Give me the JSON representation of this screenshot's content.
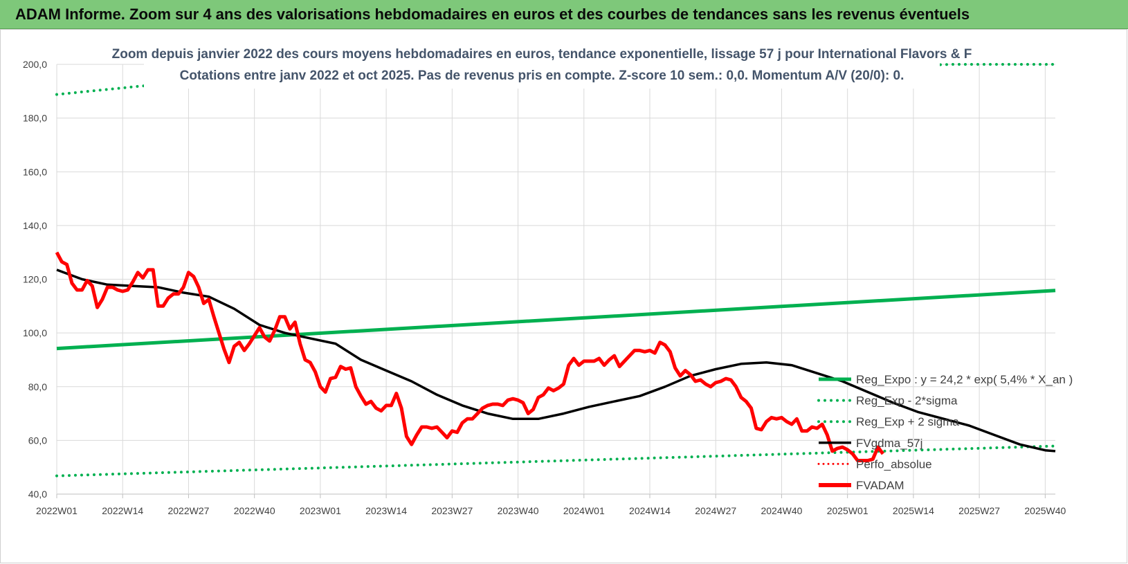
{
  "header": {
    "title": "ADAM Informe. Zoom sur 4 ans des valorisations hebdomadaires en euros et des courbes de tendances sans les revenus éventuels"
  },
  "colors": {
    "header_bg": "#7ec87a",
    "green": "#00b050",
    "red": "#ff0000",
    "black": "#000000",
    "title_text": "#44546a"
  },
  "chart_data": {
    "type": "line",
    "title": "Zoom depuis janvier 2022 des cours moyens hebdomadaires en euros, tendance exponentielle, lissage 57 j pour International Flavors & F",
    "subtitle": "Cotations entre janv 2022 et oct 2025. Pas de revenus pris en compte. Z-score 10 sem.: 0,0. Momentum A/V (20/0): 0.",
    "xlabel": "",
    "ylabel": "",
    "ylim": [
      40,
      200
    ],
    "yticks": [
      "40,0",
      "60,0",
      "80,0",
      "100,0",
      "120,0",
      "140,0",
      "160,0",
      "180,0",
      "200,0"
    ],
    "xlim": [
      0,
      197
    ],
    "x_tick_labels": [
      "2022W01",
      "2022W14",
      "2022W27",
      "2022W40",
      "2023W01",
      "2023W14",
      "2023W27",
      "2023W40",
      "2024W01",
      "2024W14",
      "2024W27",
      "2024W40",
      "2025W01",
      "2025W14",
      "2025W27",
      "2025W40"
    ],
    "x_tick_positions": [
      0,
      13,
      26,
      39,
      52,
      65,
      78,
      91,
      104,
      117,
      130,
      143,
      156,
      169,
      182,
      195
    ],
    "grid": "horizontal and vertical",
    "legend_position": "right",
    "legend": [
      {
        "label": "Reg_Expo : y = 24,2 * exp( 5,4% * X_an )",
        "style": "green-solid"
      },
      {
        "label": "Reg_Exp - 2*sigma",
        "style": "green-dotted"
      },
      {
        "label": "Reg_Exp + 2 sigma",
        "style": "green-dotted"
      },
      {
        "label": "FVgdma_57j",
        "style": "black-solid"
      },
      {
        "label": "Perfo_absolue",
        "style": "red-dotted"
      },
      {
        "label": "FVADAM",
        "style": "red-thick"
      }
    ],
    "series": [
      {
        "name": "Reg_Expo : y = 24,2 * exp( 5,4% * X_an )",
        "points": [
          [
            0,
            94.2
          ],
          [
            197,
            115.8
          ]
        ]
      },
      {
        "name": "Reg_Exp - 2*sigma",
        "points": [
          [
            0,
            46.8
          ],
          [
            197,
            57.9
          ]
        ]
      },
      {
        "name": "Reg_Exp + 2 sigma",
        "points": [
          [
            0,
            188.8
          ],
          [
            17,
            192.0
          ],
          [
            177,
            200.0
          ],
          [
            197,
            200.0
          ]
        ]
      },
      {
        "name": "FVgdma_57j",
        "points": [
          [
            0,
            123.5
          ],
          [
            5,
            120
          ],
          [
            10,
            118
          ],
          [
            15,
            117.5
          ],
          [
            20,
            117
          ],
          [
            25,
            115
          ],
          [
            30,
            113.5
          ],
          [
            35,
            109
          ],
          [
            40,
            103
          ],
          [
            45,
            100
          ],
          [
            50,
            98
          ],
          [
            55,
            96
          ],
          [
            60,
            90
          ],
          [
            65,
            86
          ],
          [
            70,
            82
          ],
          [
            75,
            77
          ],
          [
            80,
            73
          ],
          [
            85,
            70
          ],
          [
            90,
            68
          ],
          [
            95,
            68
          ],
          [
            100,
            70
          ],
          [
            105,
            72.5
          ],
          [
            110,
            74.5
          ],
          [
            115,
            76.5
          ],
          [
            120,
            80
          ],
          [
            125,
            84
          ],
          [
            130,
            86.5
          ],
          [
            135,
            88.5
          ],
          [
            140,
            89
          ],
          [
            145,
            88
          ],
          [
            150,
            85
          ],
          [
            155,
            82
          ],
          [
            160,
            78
          ],
          [
            165,
            74
          ],
          [
            170,
            70.5
          ],
          [
            175,
            68
          ],
          [
            180,
            65.5
          ],
          [
            185,
            62
          ],
          [
            190,
            58.5
          ],
          [
            195,
            56.3
          ],
          [
            197,
            56
          ]
        ]
      },
      {
        "name": "FVADAM",
        "points": [
          [
            0,
            130
          ],
          [
            1,
            126.5
          ],
          [
            2,
            125.5
          ],
          [
            3,
            118.5
          ],
          [
            4,
            116
          ],
          [
            5,
            116
          ],
          [
            6,
            119.5
          ],
          [
            7,
            117.5
          ],
          [
            8,
            109.5
          ],
          [
            9,
            112.5
          ],
          [
            10,
            117
          ],
          [
            11,
            117
          ],
          [
            12,
            116
          ],
          [
            13,
            115.5
          ],
          [
            14,
            116
          ],
          [
            15,
            119
          ],
          [
            16,
            122.5
          ],
          [
            17,
            120.5
          ],
          [
            18,
            123.5
          ],
          [
            19,
            123.5
          ],
          [
            20,
            110
          ],
          [
            21,
            110
          ],
          [
            22,
            113
          ],
          [
            23,
            114.5
          ],
          [
            24,
            114.5
          ],
          [
            25,
            117
          ],
          [
            26,
            122.5
          ],
          [
            27,
            121
          ],
          [
            28,
            117
          ],
          [
            29,
            111
          ],
          [
            30,
            112.5
          ],
          [
            31,
            106
          ],
          [
            32,
            100
          ],
          [
            33,
            94
          ],
          [
            34,
            89
          ],
          [
            35,
            95
          ],
          [
            36,
            96.5
          ],
          [
            37,
            93.5
          ],
          [
            38,
            96
          ],
          [
            39,
            99
          ],
          [
            40,
            102
          ],
          [
            41,
            98.5
          ],
          [
            42,
            97
          ],
          [
            43,
            101
          ],
          [
            44,
            106
          ],
          [
            45,
            106
          ],
          [
            46,
            101.5
          ],
          [
            47,
            104
          ],
          [
            48,
            96
          ],
          [
            49,
            90
          ],
          [
            50,
            89
          ],
          [
            51,
            85.5
          ],
          [
            52,
            80
          ],
          [
            53,
            78
          ],
          [
            54,
            83
          ],
          [
            55,
            83.5
          ],
          [
            56,
            87.5
          ],
          [
            57,
            86.5
          ],
          [
            58,
            87
          ],
          [
            59,
            80
          ],
          [
            60,
            76.5
          ],
          [
            61,
            73.5
          ],
          [
            62,
            74.5
          ],
          [
            63,
            72
          ],
          [
            64,
            71
          ],
          [
            65,
            73
          ],
          [
            66,
            73
          ],
          [
            67,
            77.5
          ],
          [
            68,
            72
          ],
          [
            69,
            61.5
          ],
          [
            70,
            58.5
          ],
          [
            71,
            62
          ],
          [
            72,
            65
          ],
          [
            73,
            65
          ],
          [
            74,
            64.5
          ],
          [
            75,
            65
          ],
          [
            76,
            63
          ],
          [
            77,
            61
          ],
          [
            78,
            63.5
          ],
          [
            79,
            63
          ],
          [
            80,
            66.5
          ],
          [
            81,
            68
          ],
          [
            82,
            68
          ],
          [
            83,
            70
          ],
          [
            84,
            72
          ],
          [
            85,
            73
          ],
          [
            86,
            73.5
          ],
          [
            87,
            73.5
          ],
          [
            88,
            73
          ],
          [
            89,
            75
          ],
          [
            90,
            75.5
          ],
          [
            91,
            75
          ],
          [
            92,
            74
          ],
          [
            93,
            70
          ],
          [
            94,
            71.5
          ],
          [
            95,
            76
          ],
          [
            96,
            77
          ],
          [
            97,
            79.5
          ],
          [
            98,
            78.5
          ],
          [
            99,
            79.5
          ],
          [
            100,
            81
          ],
          [
            101,
            88
          ],
          [
            102,
            90.5
          ],
          [
            103,
            88
          ],
          [
            104,
            89.5
          ],
          [
            105,
            89.5
          ],
          [
            106,
            89.5
          ],
          [
            107,
            90.5
          ],
          [
            108,
            88
          ],
          [
            109,
            90
          ],
          [
            110,
            91.5
          ],
          [
            111,
            87.5
          ],
          [
            112,
            89.5
          ],
          [
            113,
            91.5
          ],
          [
            114,
            93.5
          ],
          [
            115,
            93.5
          ],
          [
            116,
            93
          ],
          [
            117,
            93.5
          ],
          [
            118,
            92.5
          ],
          [
            119,
            96.5
          ],
          [
            120,
            95.5
          ],
          [
            121,
            93
          ],
          [
            122,
            87
          ],
          [
            123,
            84
          ],
          [
            124,
            86
          ],
          [
            125,
            84.5
          ],
          [
            126,
            82
          ],
          [
            127,
            82.5
          ],
          [
            128,
            81
          ],
          [
            129,
            80
          ],
          [
            130,
            81.5
          ],
          [
            131,
            82
          ],
          [
            132,
            83
          ],
          [
            133,
            82.5
          ],
          [
            134,
            80
          ],
          [
            135,
            76
          ],
          [
            136,
            74.5
          ],
          [
            137,
            72
          ],
          [
            138,
            64.5
          ],
          [
            139,
            64
          ],
          [
            140,
            67
          ],
          [
            141,
            68.5
          ],
          [
            142,
            68
          ],
          [
            143,
            68.5
          ],
          [
            144,
            67
          ],
          [
            145,
            66
          ],
          [
            146,
            68
          ],
          [
            147,
            63.5
          ],
          [
            148,
            63.5
          ],
          [
            149,
            65
          ],
          [
            150,
            64.5
          ],
          [
            151,
            66
          ],
          [
            152,
            62
          ],
          [
            153,
            56
          ],
          [
            154,
            57
          ],
          [
            155,
            57.5
          ],
          [
            156,
            56.5
          ],
          [
            157,
            55
          ],
          [
            158,
            52.5
          ],
          [
            159,
            52.5
          ],
          [
            160,
            52.5
          ],
          [
            161,
            53
          ],
          [
            162,
            57.5
          ],
          [
            163,
            55
          ]
        ]
      }
    ]
  }
}
